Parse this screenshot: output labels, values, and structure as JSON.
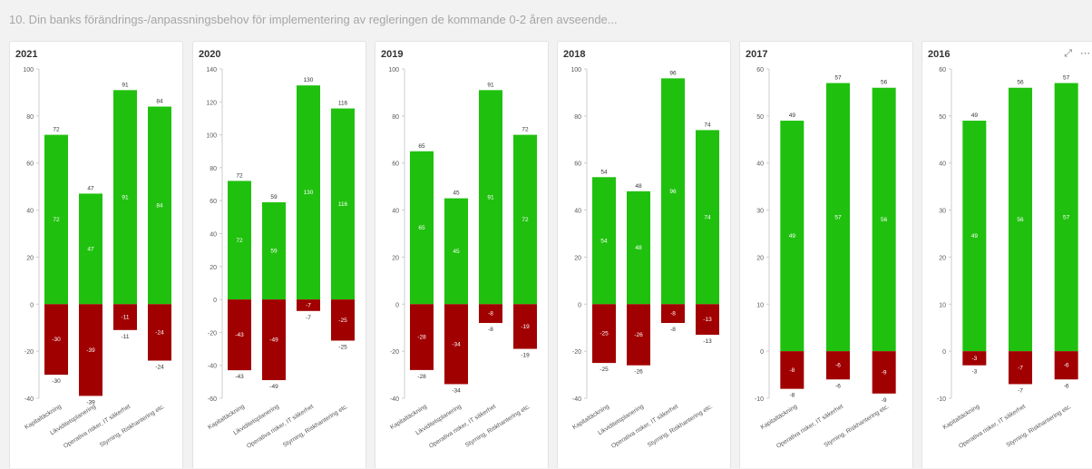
{
  "sheet": {
    "title": "10. Din banks förändrings-/anpassningsbehov för implementering av regleringen de kommande 0-2 åren avseende..."
  },
  "toolbar": {
    "expand_icon": "expand-icon",
    "more_icon": "more-icon"
  },
  "colors": {
    "positive": "#1fc10e",
    "negative": "#a10000",
    "axis": "#cccccc",
    "text": "#595959"
  },
  "chart_data": [
    {
      "type": "bar",
      "title": "2021",
      "categories": [
        "Kapitaltäckning",
        "Likviditetsplanering",
        "Operativa risker, IT säkerhet",
        "Styrning, Riskhantering etc."
      ],
      "series": [
        {
          "values": [
            72,
            47,
            91,
            84
          ]
        },
        {
          "values": [
            -30,
            -39,
            -11,
            -24
          ]
        }
      ],
      "ylim": [
        -40,
        100
      ],
      "yticks": [
        100,
        80,
        60,
        40,
        20,
        0,
        -20,
        -40
      ],
      "stacked": true,
      "data_labels": true
    },
    {
      "type": "bar",
      "title": "2020",
      "categories": [
        "Kapitaltäckning",
        "Likviditetsplanering",
        "Operativa risker, IT säkerhet",
        "Styrning, Riskhantering etc."
      ],
      "series": [
        {
          "values": [
            72,
            59,
            130,
            116
          ]
        },
        {
          "values": [
            -43,
            -49,
            -7,
            -25
          ]
        }
      ],
      "ylim": [
        -60,
        140
      ],
      "yticks": [
        140,
        120,
        100,
        80,
        60,
        40,
        20,
        0,
        -20,
        -40,
        -60
      ],
      "stacked": true,
      "data_labels": true
    },
    {
      "type": "bar",
      "title": "2019",
      "categories": [
        "Kapitaltäckning",
        "Likviditetsplanering",
        "Operativa risker, IT säkerhet",
        "Styrning, Riskhantering etc."
      ],
      "series": [
        {
          "values": [
            65,
            45,
            91,
            72
          ]
        },
        {
          "values": [
            -28,
            -34,
            -8,
            -19
          ]
        }
      ],
      "ylim": [
        -40,
        100
      ],
      "yticks": [
        100,
        80,
        60,
        40,
        20,
        0,
        -20,
        -40
      ],
      "stacked": true,
      "data_labels": true
    },
    {
      "type": "bar",
      "title": "2018",
      "categories": [
        "Kapitaltäckning",
        "Likviditetsplanering",
        "Operativa risker, IT säkerhet",
        "Styrning, Riskhantering etc."
      ],
      "series": [
        {
          "values": [
            54,
            48,
            96,
            74
          ]
        },
        {
          "values": [
            -25,
            -26,
            -8,
            -13
          ]
        }
      ],
      "ylim": [
        -40,
        100
      ],
      "yticks": [
        100,
        80,
        60,
        40,
        20,
        0,
        -20,
        -40
      ],
      "stacked": true,
      "data_labels": true
    },
    {
      "type": "bar",
      "title": "2017",
      "categories": [
        "Kapitaltäckning",
        "Operativa risker, IT säkerhet",
        "Styrning, Riskhantering etc."
      ],
      "series": [
        {
          "values": [
            49,
            57,
            56
          ]
        },
        {
          "values": [
            -8,
            -6,
            -9
          ]
        }
      ],
      "ylim": [
        -10,
        60
      ],
      "yticks": [
        60,
        50,
        40,
        30,
        20,
        10,
        0,
        -10
      ],
      "stacked": true,
      "data_labels": true
    },
    {
      "type": "bar",
      "title": "2016",
      "categories": [
        "Kapitaltäckning",
        "Operativa risker, IT säkerhet",
        "Styrning, Riskhantering etc."
      ],
      "series": [
        {
          "values": [
            49,
            56,
            57
          ]
        },
        {
          "values": [
            -3,
            -7,
            -6
          ]
        }
      ],
      "ylim": [
        -10,
        60
      ],
      "yticks": [
        60,
        50,
        40,
        30,
        20,
        10,
        0,
        -10
      ],
      "stacked": true,
      "data_labels": true
    }
  ]
}
